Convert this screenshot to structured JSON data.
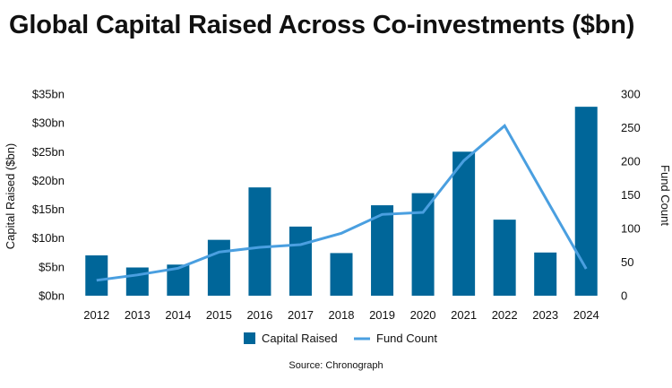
{
  "title": "Global Capital Raised Across Co-investments ($bn)",
  "source": "Source: Chronograph",
  "colors": {
    "bar": "#006699",
    "line": "#4a9fe0"
  },
  "chart_data": {
    "type": "bar+line",
    "categories": [
      "2012",
      "2013",
      "2014",
      "2015",
      "2016",
      "2017",
      "2018",
      "2019",
      "2020",
      "2021",
      "2022",
      "2023",
      "2024"
    ],
    "series": [
      {
        "name": "Capital Raised",
        "type": "bar",
        "axis": "left",
        "values": [
          7.0,
          4.9,
          5.4,
          9.7,
          18.8,
          12.0,
          7.4,
          15.7,
          17.8,
          25.0,
          13.2,
          7.5,
          32.8
        ]
      },
      {
        "name": "Fund Count",
        "type": "line",
        "axis": "right",
        "values": [
          23,
          31,
          41,
          65,
          72,
          76,
          93,
          121,
          124,
          201,
          253,
          146,
          40
        ]
      }
    ],
    "ylabel": "Capital Raised ($bn)",
    "y2label": "Fund Count",
    "ylim": [
      0,
      35
    ],
    "y2lim": [
      0,
      300
    ],
    "yticks": [
      "$0bn",
      "$5bn",
      "$10bn",
      "$15bn",
      "$20bn",
      "$25bn",
      "$30bn",
      "$35bn"
    ],
    "y2ticks": [
      "0",
      "50",
      "100",
      "150",
      "200",
      "250",
      "300"
    ],
    "grid": false,
    "legend": "bottom"
  }
}
